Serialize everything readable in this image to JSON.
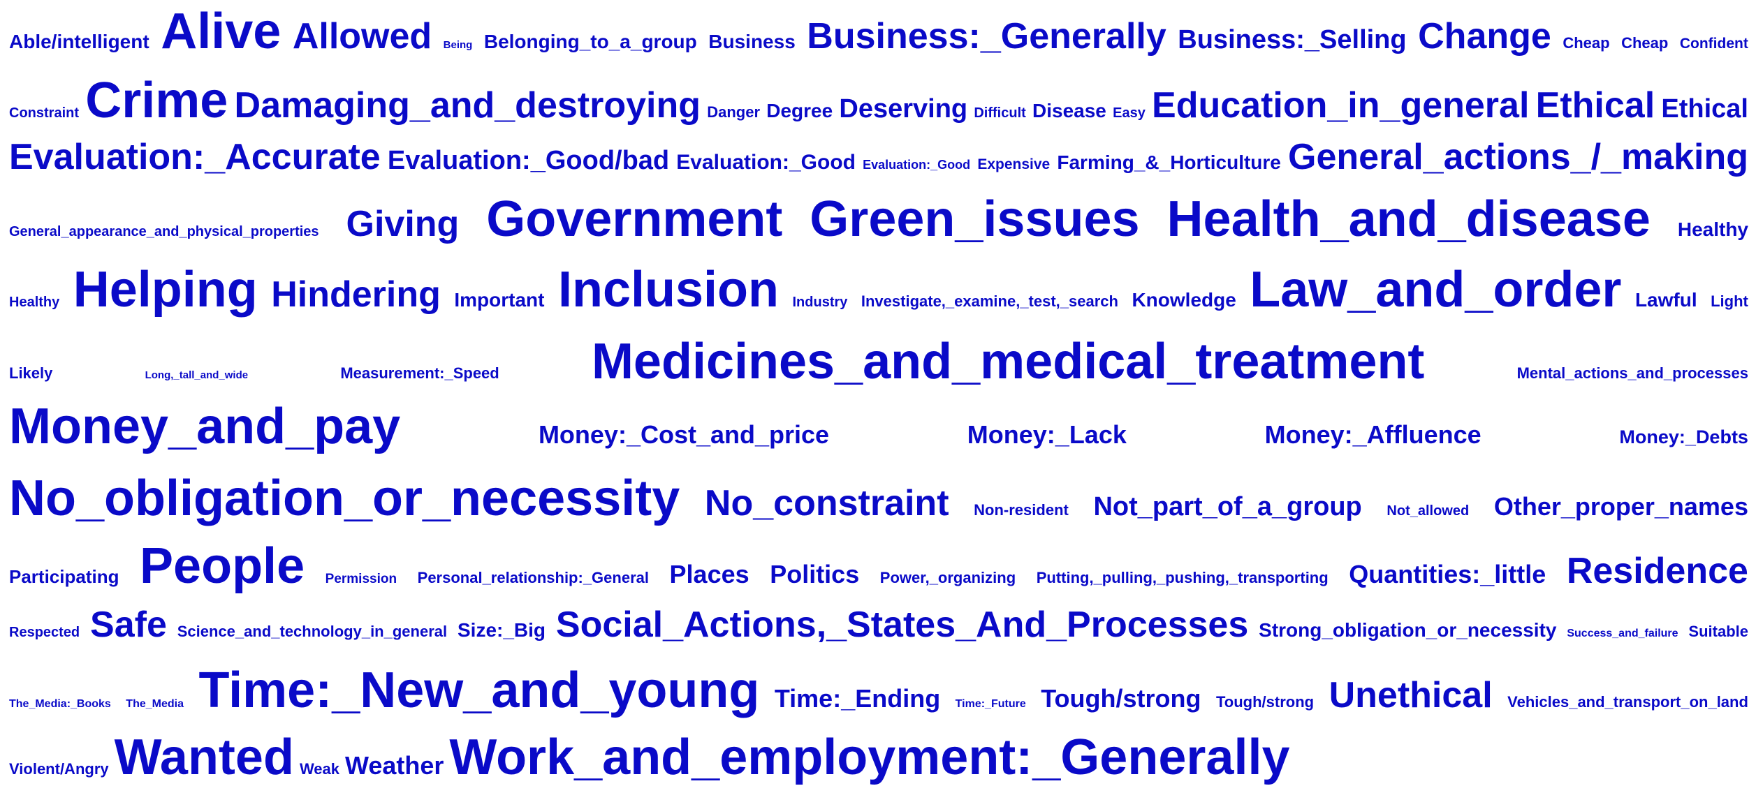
{
  "style": {
    "text_color": "#0a0ac8",
    "background": "#ffffff"
  },
  "rows": [
    {
      "terms": [
        {
          "text": "Able/intelligent",
          "weight": 28
        },
        {
          "text": "Alive",
          "weight": 72
        },
        {
          "text": "Allowed",
          "weight": 52
        },
        {
          "text": "Being",
          "weight": 15
        },
        {
          "text": "Belonging_to_a_group",
          "weight": 28
        },
        {
          "text": "Business",
          "weight": 28
        },
        {
          "text": "Business:_Generally",
          "weight": 52
        },
        {
          "text": "Business:_Selling",
          "weight": 38
        },
        {
          "text": "Change",
          "weight": 52
        },
        {
          "text": "Cheap",
          "weight": 22
        },
        {
          "text": "Cheap",
          "weight": 22
        },
        {
          "text": "Confident",
          "weight": 21
        }
      ]
    },
    {
      "terms": [
        {
          "text": "Constraint",
          "weight": 20
        },
        {
          "text": "Crime",
          "weight": 72
        },
        {
          "text": "Damaging_and_destroying",
          "weight": 52
        },
        {
          "text": "Danger",
          "weight": 22
        },
        {
          "text": "Degree",
          "weight": 28
        },
        {
          "text": "Deserving",
          "weight": 38
        },
        {
          "text": "Difficult",
          "weight": 20
        },
        {
          "text": "Disease",
          "weight": 28
        },
        {
          "text": "Easy",
          "weight": 20
        },
        {
          "text": "Education_in_general",
          "weight": 52
        },
        {
          "text": "Ethical",
          "weight": 52
        },
        {
          "text": "Ethical",
          "weight": 38
        }
      ]
    },
    {
      "terms": [
        {
          "text": "Evaluation:_Accurate",
          "weight": 52
        },
        {
          "text": "Evaluation:_Good/bad",
          "weight": 38
        },
        {
          "text": "Evaluation:_Good",
          "weight": 30
        },
        {
          "text": "Evaluation:_Good",
          "weight": 18
        },
        {
          "text": "Expensive",
          "weight": 21
        },
        {
          "text": "Farming_&_Horticulture",
          "weight": 28
        },
        {
          "text": "General_actions_/_making",
          "weight": 52
        }
      ]
    },
    {
      "terms": [
        {
          "text": "General_appearance_and_physical_properties",
          "weight": 20
        },
        {
          "text": "Giving",
          "weight": 52
        },
        {
          "text": "Government",
          "weight": 72
        },
        {
          "text": "Green_issues",
          "weight": 72
        },
        {
          "text": "Health_and_disease",
          "weight": 72
        },
        {
          "text": "Healthy",
          "weight": 28
        }
      ]
    },
    {
      "terms": [
        {
          "text": "Healthy",
          "weight": 20
        },
        {
          "text": "Helping",
          "weight": 72
        },
        {
          "text": "Hindering",
          "weight": 52
        },
        {
          "text": "Important",
          "weight": 28
        },
        {
          "text": "Inclusion",
          "weight": 72
        },
        {
          "text": "Industry",
          "weight": 20
        },
        {
          "text": "Investigate,_examine,_test,_search",
          "weight": 22
        },
        {
          "text": "Knowledge",
          "weight": 28
        },
        {
          "text": "Law_and_order",
          "weight": 72
        },
        {
          "text": "Lawful",
          "weight": 28
        },
        {
          "text": "Light",
          "weight": 22
        }
      ]
    },
    {
      "terms": [
        {
          "text": "Likely",
          "weight": 22
        },
        {
          "text": "Long,_tall_and_wide",
          "weight": 15
        },
        {
          "text": "Measurement:_Speed",
          "weight": 22
        },
        {
          "text": "Medicines_and_medical_treatment",
          "weight": 72
        },
        {
          "text": "Mental_actions_and_processes",
          "weight": 22
        }
      ]
    },
    {
      "terms": [
        {
          "text": "Money_and_pay",
          "weight": 72
        },
        {
          "text": "Money:_Cost_and_price",
          "weight": 36
        },
        {
          "text": "Money:_Lack",
          "weight": 36
        },
        {
          "text": "Money:_Affluence",
          "weight": 36
        },
        {
          "text": "Money:_Debts",
          "weight": 27
        }
      ]
    },
    {
      "terms": [
        {
          "text": "No_obligation_or_necessity",
          "weight": 72
        },
        {
          "text": "No_constraint",
          "weight": 52
        },
        {
          "text": "Non-resident",
          "weight": 22
        },
        {
          "text": "Not_part_of_a_group",
          "weight": 38
        },
        {
          "text": "Not_allowed",
          "weight": 20
        },
        {
          "text": "Other_proper_names",
          "weight": 36
        }
      ]
    },
    {
      "terms": [
        {
          "text": "Participating",
          "weight": 26
        },
        {
          "text": "People",
          "weight": 72
        },
        {
          "text": "Permission",
          "weight": 19
        },
        {
          "text": "Personal_relationship:_General",
          "weight": 22
        },
        {
          "text": "Places",
          "weight": 36
        },
        {
          "text": "Politics",
          "weight": 36
        },
        {
          "text": "Power,_organizing",
          "weight": 22
        },
        {
          "text": "Putting,_pulling,_pushing,_transporting",
          "weight": 22
        },
        {
          "text": "Quantities:_little",
          "weight": 36
        },
        {
          "text": "Residence",
          "weight": 52
        }
      ]
    },
    {
      "terms": [
        {
          "text": "Respected",
          "weight": 20
        },
        {
          "text": "Safe",
          "weight": 52
        },
        {
          "text": "Science_and_technology_in_general",
          "weight": 22
        },
        {
          "text": "Size:_Big",
          "weight": 28
        },
        {
          "text": "Social_Actions,_States_And_Processes",
          "weight": 52
        },
        {
          "text": "Strong_obligation_or_necessity",
          "weight": 28
        },
        {
          "text": "Success_and_failure",
          "weight": 16
        },
        {
          "text": "Suitable",
          "weight": 22
        }
      ]
    },
    {
      "terms": [
        {
          "text": "The_Media:_Books",
          "weight": 16
        },
        {
          "text": "The_Media",
          "weight": 16
        },
        {
          "text": "Time:_New_and_young",
          "weight": 72
        },
        {
          "text": "Time:_Ending",
          "weight": 36
        },
        {
          "text": "Time:_Future",
          "weight": 16
        },
        {
          "text": "Tough/strong",
          "weight": 36
        },
        {
          "text": "Tough/strong",
          "weight": 22
        },
        {
          "text": "Unethical",
          "weight": 52
        },
        {
          "text": "Vehicles_and_transport_on_land",
          "weight": 22
        }
      ]
    },
    {
      "last": true,
      "terms": [
        {
          "text": "Violent/Angry",
          "weight": 22
        },
        {
          "text": "Wanted",
          "weight": 72
        },
        {
          "text": "Weak",
          "weight": 22
        },
        {
          "text": "Weather",
          "weight": 36
        },
        {
          "text": "Work_and_employment:_Generally",
          "weight": 72
        }
      ]
    }
  ]
}
